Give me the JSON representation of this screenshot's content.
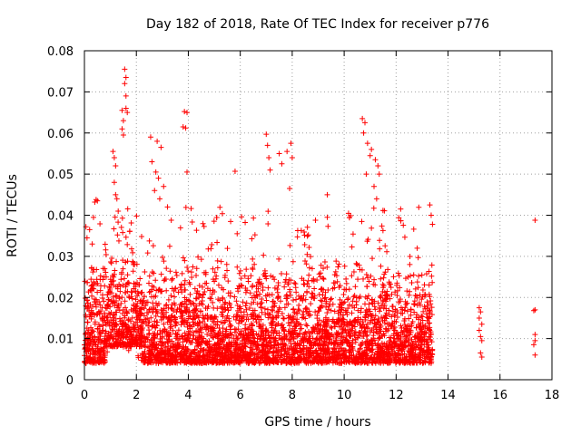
{
  "chart_data": {
    "type": "scatter",
    "title": "Day 182 of 2018, Rate Of TEC Index for receiver p776",
    "xlabel": "GPS time / hours",
    "ylabel": "ROTI / TECUs",
    "xlim": [
      0,
      18
    ],
    "ylim": [
      0,
      0.08
    ],
    "xticks": [
      0,
      2,
      4,
      6,
      8,
      10,
      12,
      14,
      16,
      18
    ],
    "yticks": [
      0,
      0.01,
      0.02,
      0.03,
      0.04,
      0.05,
      0.06,
      0.07,
      0.08
    ],
    "xtick_labels": [
      "0",
      "2",
      "4",
      "6",
      "8",
      "10",
      "12",
      "14",
      "16",
      "18"
    ],
    "ytick_labels": [
      "0",
      "0.01",
      "0.02",
      "0.03",
      "0.04",
      "0.05",
      "0.06",
      "0.07",
      "0.08"
    ],
    "grid": true,
    "marker": "plus",
    "series": [
      {
        "name": "ROTI",
        "color": "#ff0000",
        "points": [
          [
            1.55,
            0.0755
          ],
          [
            1.6,
            0.0735
          ],
          [
            1.55,
            0.072
          ],
          [
            1.6,
            0.069
          ],
          [
            1.6,
            0.066
          ],
          [
            1.65,
            0.065
          ],
          [
            1.5,
            0.063
          ],
          [
            1.45,
            0.061
          ],
          [
            1.45,
            0.0655
          ],
          [
            1.5,
            0.0595
          ],
          [
            1.1,
            0.0555
          ],
          [
            1.15,
            0.054
          ],
          [
            1.2,
            0.052
          ],
          [
            1.15,
            0.048
          ],
          [
            1.2,
            0.045
          ],
          [
            1.25,
            0.044
          ],
          [
            1.3,
            0.041
          ],
          [
            2.55,
            0.059
          ],
          [
            2.8,
            0.058
          ],
          [
            2.95,
            0.0565
          ],
          [
            2.6,
            0.053
          ],
          [
            2.75,
            0.0505
          ],
          [
            2.85,
            0.049
          ],
          [
            2.7,
            0.046
          ],
          [
            2.9,
            0.044
          ],
          [
            3.05,
            0.047
          ],
          [
            3.2,
            0.042
          ],
          [
            3.85,
            0.0652
          ],
          [
            3.95,
            0.065
          ],
          [
            3.8,
            0.0615
          ],
          [
            3.9,
            0.0612
          ],
          [
            3.95,
            0.0505
          ],
          [
            5.8,
            0.0507
          ],
          [
            7.0,
            0.0597
          ],
          [
            7.05,
            0.057
          ],
          [
            7.1,
            0.054
          ],
          [
            7.15,
            0.051
          ],
          [
            7.5,
            0.055
          ],
          [
            7.6,
            0.0525
          ],
          [
            7.8,
            0.0555
          ],
          [
            7.95,
            0.0575
          ],
          [
            8.0,
            0.054
          ],
          [
            7.9,
            0.0465
          ],
          [
            9.35,
            0.045
          ],
          [
            9.35,
            0.0395
          ],
          [
            10.7,
            0.0635
          ],
          [
            10.8,
            0.0625
          ],
          [
            10.75,
            0.06
          ],
          [
            10.9,
            0.0575
          ],
          [
            11.05,
            0.056
          ],
          [
            11.0,
            0.0545
          ],
          [
            11.2,
            0.0535
          ],
          [
            10.85,
            0.05
          ],
          [
            11.3,
            0.052
          ],
          [
            11.35,
            0.05
          ],
          [
            11.15,
            0.047
          ],
          [
            11.25,
            0.044
          ],
          [
            0.45,
            0.0438
          ],
          [
            0.4,
            0.0432
          ],
          [
            0.5,
            0.0435
          ],
          [
            0.1,
            0.0345
          ],
          [
            0.2,
            0.0365
          ],
          [
            0.3,
            0.033
          ],
          [
            13.3,
            0.0425
          ],
          [
            13.35,
            0.04
          ],
          [
            13.4,
            0.0378
          ],
          [
            15.2,
            0.0175
          ],
          [
            15.25,
            0.0165
          ],
          [
            15.2,
            0.015
          ],
          [
            15.3,
            0.0135
          ],
          [
            15.2,
            0.012
          ],
          [
            15.25,
            0.0105
          ],
          [
            15.3,
            0.0095
          ],
          [
            15.25,
            0.0065
          ],
          [
            15.3,
            0.0055
          ],
          [
            17.35,
            0.0388
          ],
          [
            17.35,
            0.017
          ],
          [
            17.3,
            0.0168
          ],
          [
            17.35,
            0.011
          ],
          [
            17.35,
            0.0095
          ],
          [
            17.3,
            0.0085
          ],
          [
            17.35,
            0.006
          ]
        ],
        "dense_bands": [
          {
            "x_start": 0.0,
            "x_end": 13.4,
            "y_typical": [
              0.004,
              0.03
            ],
            "spike_top": 0.042
          }
        ]
      }
    ]
  }
}
